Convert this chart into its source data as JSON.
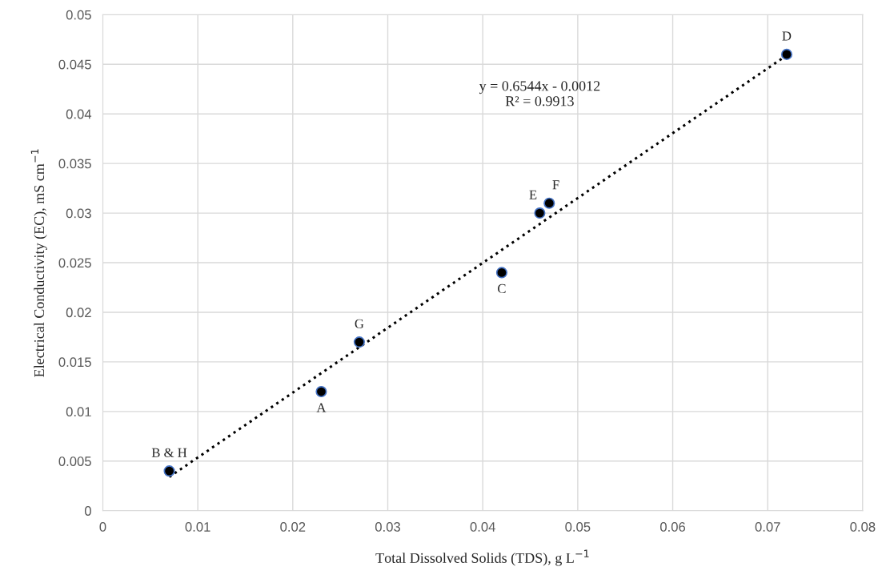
{
  "chart_data": {
    "type": "scatter",
    "xlabel": "Total Dissolved Solids (TDS), g L$^{−1}$",
    "ylabel": "Electrical Conductivity (EC), mS cm$^{−1}$",
    "series": [
      {
        "color": "#000000",
        "marker": "circle",
        "x": [
          0.007,
          0.023,
          0.027,
          0.042,
          0.046,
          0.047,
          0.072
        ],
        "values": [
          0.004,
          0.012,
          0.017,
          0.024,
          0.03,
          0.031,
          0.046
        ]
      },
      {
        "type": "line",
        "color": "#000000",
        "line_style": "dotted",
        "marker": "none",
        "x": [
          0.007,
          0.072
        ],
        "values": [
          0.0034,
          0.0459
        ]
      }
    ],
    "annotations": [
      {
        "text": "B & H",
        "x": 0.007,
        "y": 0.004
      },
      {
        "text": "A",
        "x": 0.023,
        "y": 0.012
      },
      {
        "text": "G",
        "x": 0.027,
        "y": 0.017
      },
      {
        "text": "C",
        "x": 0.042,
        "y": 0.024
      },
      {
        "text": "E",
        "x": 0.046,
        "y": 0.03
      },
      {
        "text": "F",
        "x": 0.047,
        "y": 0.031
      },
      {
        "text": "D",
        "x": 0.072,
        "y": 0.046
      },
      "y = 0.6544x - 0.0012\nR² = 0.9913"
    ],
    "xlim": [
      0,
      0.08
    ],
    "xticks": [
      0,
      0.01,
      0.02,
      0.03,
      0.04,
      0.05,
      0.06,
      0.07,
      0.08
    ],
    "ylim": [
      0,
      0.05
    ],
    "yticks": [
      0,
      0.005,
      0.01,
      0.015,
      0.02,
      0.025,
      0.03,
      0.035,
      0.04,
      0.045,
      0.05
    ],
    "grid": true,
    "legend": false
  }
}
